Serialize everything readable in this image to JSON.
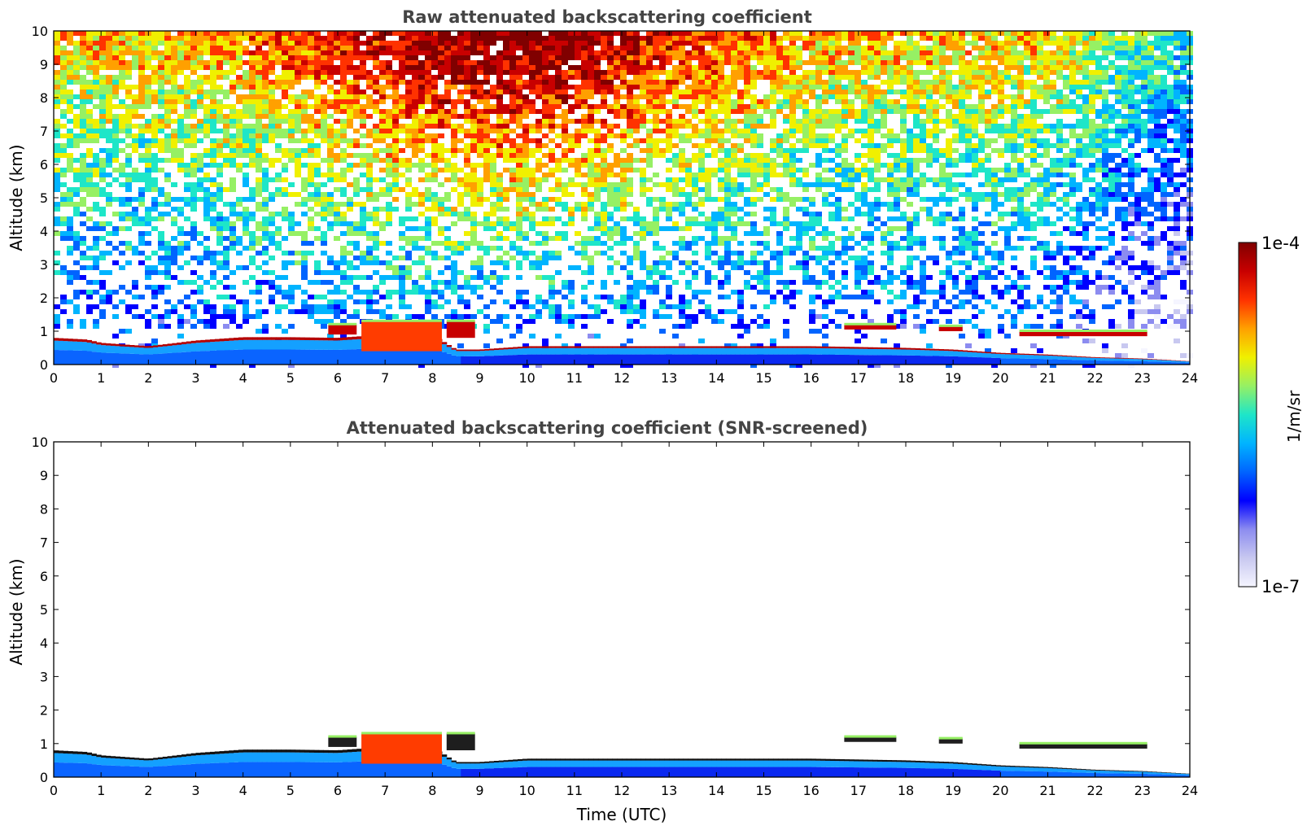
{
  "colorscale": [
    "#f5f5ff",
    "#c8c8f0",
    "#8c8cf0",
    "#0000ff",
    "#0064ff",
    "#00b4ff",
    "#1ee6c8",
    "#96f064",
    "#f0f000",
    "#ffa000",
    "#ff3200",
    "#c80000",
    "#800000"
  ],
  "chart_data": [
    {
      "type": "heatmap",
      "title": "Raw attenuated backscattering coefficient",
      "xlabel": "",
      "ylabel": "Altitude (km)",
      "xlim": [
        0,
        24
      ],
      "ylim": [
        0,
        10
      ],
      "xticks": [
        "0",
        "1",
        "2",
        "3",
        "4",
        "5",
        "6",
        "7",
        "8",
        "9",
        "10",
        "11",
        "12",
        "13",
        "14",
        "15",
        "16",
        "17",
        "18",
        "19",
        "20",
        "21",
        "22",
        "23",
        "24"
      ],
      "yticks": [
        "0",
        "1",
        "2",
        "3",
        "4",
        "5",
        "6",
        "7",
        "8",
        "9",
        "10"
      ],
      "x_unit": "UTC hour",
      "y_unit": "km",
      "value_scale": "log",
      "noise": "high",
      "layer_top_km": [
        [
          0,
          0.8
        ],
        [
          0.7,
          0.75
        ],
        [
          1,
          0.65
        ],
        [
          2,
          0.55
        ],
        [
          2.6,
          0.65
        ],
        [
          3,
          0.72
        ],
        [
          4,
          0.82
        ],
        [
          5,
          0.82
        ],
        [
          6,
          0.8
        ],
        [
          6.5,
          0.85
        ],
        [
          7,
          1.0
        ],
        [
          8,
          0.9
        ],
        [
          8.5,
          0.45
        ],
        [
          9,
          0.45
        ],
        [
          10,
          0.55
        ],
        [
          11,
          0.55
        ],
        [
          12,
          0.55
        ],
        [
          14,
          0.55
        ],
        [
          16,
          0.55
        ],
        [
          18,
          0.5
        ],
        [
          19,
          0.45
        ],
        [
          20,
          0.35
        ],
        [
          21,
          0.3
        ],
        [
          22,
          0.22
        ],
        [
          23,
          0.18
        ],
        [
          24,
          0.1
        ]
      ],
      "clouds": [
        {
          "x0": 6.5,
          "x1": 8.2,
          "base_km": 0.4,
          "top_km": 1.3
        },
        {
          "x0": 5.8,
          "x1": 6.4,
          "base_km": 0.9,
          "top_km": 1.2
        },
        {
          "x0": 8.3,
          "x1": 8.9,
          "base_km": 0.8,
          "top_km": 1.3
        },
        {
          "x0": 16.7,
          "x1": 17.8,
          "base_km": 1.05,
          "top_km": 1.2
        },
        {
          "x0": 18.7,
          "x1": 19.2,
          "base_km": 1.0,
          "top_km": 1.15
        },
        {
          "x0": 20.4,
          "x1": 23.1,
          "base_km": 0.85,
          "top_km": 1.0
        }
      ]
    },
    {
      "type": "heatmap",
      "title": "Attenuated backscattering coefficient (SNR-screened)",
      "xlabel": "Time (UTC)",
      "ylabel": "Altitude (km)",
      "xlim": [
        0,
        24
      ],
      "ylim": [
        0,
        10
      ],
      "xticks": [
        "0",
        "1",
        "2",
        "3",
        "4",
        "5",
        "6",
        "7",
        "8",
        "9",
        "10",
        "11",
        "12",
        "13",
        "14",
        "15",
        "16",
        "17",
        "18",
        "19",
        "20",
        "21",
        "22",
        "23",
        "24"
      ],
      "yticks": [
        "0",
        "1",
        "2",
        "3",
        "4",
        "5",
        "6",
        "7",
        "8",
        "9",
        "10"
      ],
      "x_unit": "UTC hour",
      "y_unit": "km",
      "value_scale": "log",
      "noise": "screened",
      "layer_top_km": [
        [
          0,
          0.8
        ],
        [
          0.7,
          0.75
        ],
        [
          1,
          0.65
        ],
        [
          2,
          0.55
        ],
        [
          2.6,
          0.65
        ],
        [
          3,
          0.72
        ],
        [
          4,
          0.82
        ],
        [
          5,
          0.82
        ],
        [
          6,
          0.8
        ],
        [
          6.5,
          0.85
        ],
        [
          7,
          1.0
        ],
        [
          8,
          0.9
        ],
        [
          8.5,
          0.45
        ],
        [
          9,
          0.45
        ],
        [
          10,
          0.55
        ],
        [
          11,
          0.55
        ],
        [
          12,
          0.55
        ],
        [
          14,
          0.55
        ],
        [
          16,
          0.55
        ],
        [
          18,
          0.5
        ],
        [
          19,
          0.45
        ],
        [
          20,
          0.35
        ],
        [
          21,
          0.3
        ],
        [
          22,
          0.22
        ],
        [
          23,
          0.18
        ],
        [
          24,
          0.1
        ]
      ],
      "clouds": [
        {
          "x0": 6.5,
          "x1": 8.2,
          "base_km": 0.4,
          "top_km": 1.3
        },
        {
          "x0": 5.8,
          "x1": 6.4,
          "base_km": 0.9,
          "top_km": 1.2
        },
        {
          "x0": 8.3,
          "x1": 8.9,
          "base_km": 0.8,
          "top_km": 1.3
        },
        {
          "x0": 16.7,
          "x1": 17.8,
          "base_km": 1.05,
          "top_km": 1.2
        },
        {
          "x0": 18.7,
          "x1": 19.2,
          "base_km": 1.0,
          "top_km": 1.15
        },
        {
          "x0": 20.4,
          "x1": 23.1,
          "base_km": 0.85,
          "top_km": 1.0
        }
      ]
    }
  ],
  "colorbar": {
    "max_label": "1e-4",
    "min_label": "1e-7",
    "unit_label": "1/m/sr"
  }
}
